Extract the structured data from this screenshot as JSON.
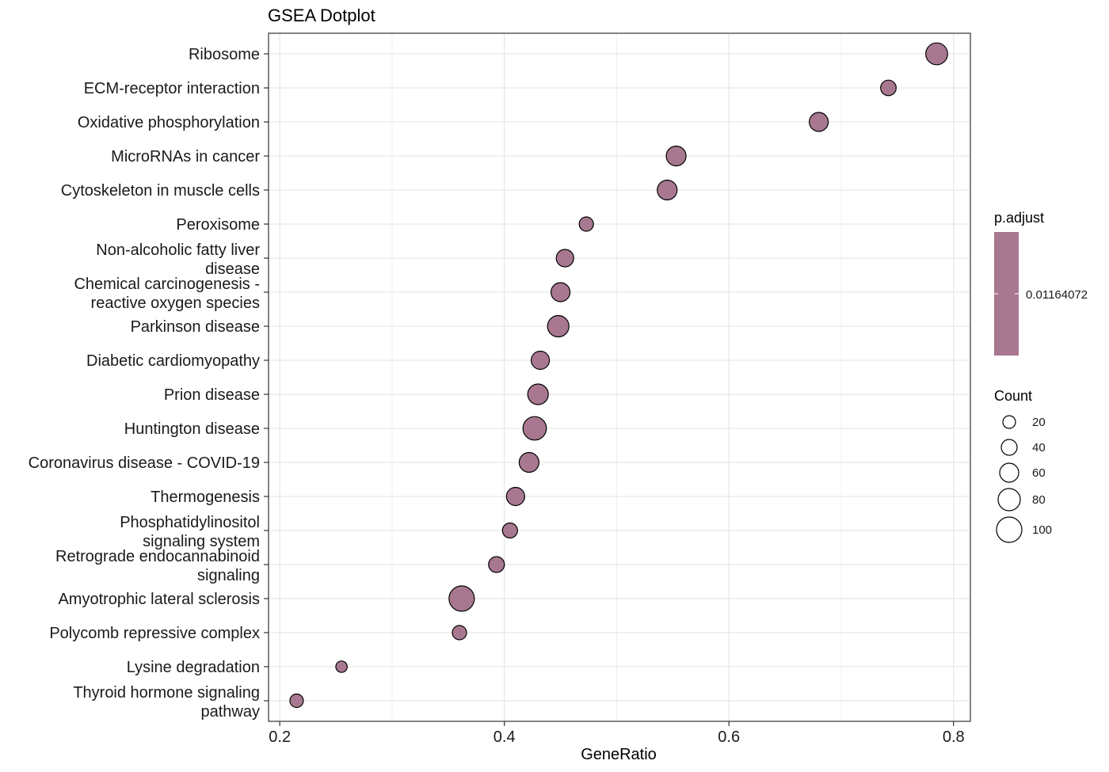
{
  "chart_data": {
    "type": "scatter",
    "title": "GSEA Dotplot",
    "xlabel": "GeneRatio",
    "ylabel": "",
    "xlim": [
      0.19,
      0.815
    ],
    "xticks": [
      "0.2",
      "0.4",
      "0.6",
      "0.8"
    ],
    "xtick_values": [
      0.2,
      0.4,
      0.6,
      0.8
    ],
    "grid": true,
    "legend_position": "right",
    "point_color": "#a87890",
    "categories": [
      "Ribosome",
      "ECM-receptor interaction",
      "Oxidative phosphorylation",
      "MicroRNAs in cancer",
      "Cytoskeleton in muscle cells",
      "Peroxisome",
      "Non-alcoholic fatty liver disease",
      "Chemical carcinogenesis - reactive oxygen species",
      "Parkinson disease",
      "Diabetic cardiomyopathy",
      "Prion disease",
      "Huntington disease",
      "Coronavirus disease - COVID-19",
      "Thermogenesis",
      "Phosphatidylinositol signaling system",
      "Retrograde endocannabinoid signaling",
      "Amyotrophic lateral sclerosis",
      "Polycomb repressive complex",
      "Lysine degradation",
      "Thyroid hormone signaling pathway"
    ],
    "category_lines": [
      [
        "Ribosome"
      ],
      [
        "ECM-receptor interaction"
      ],
      [
        "Oxidative phosphorylation"
      ],
      [
        "MicroRNAs in cancer"
      ],
      [
        "Cytoskeleton in muscle cells"
      ],
      [
        "Peroxisome"
      ],
      [
        "Non-alcoholic fatty liver",
        "disease"
      ],
      [
        "Chemical carcinogenesis -",
        "reactive oxygen species"
      ],
      [
        "Parkinson disease"
      ],
      [
        "Diabetic cardiomyopathy"
      ],
      [
        "Prion disease"
      ],
      [
        "Huntington disease"
      ],
      [
        "Coronavirus disease - COVID-19"
      ],
      [
        "Thermogenesis"
      ],
      [
        "Phosphatidylinositol",
        "signaling system"
      ],
      [
        "Retrograde endocannabinoid",
        "signaling"
      ],
      [
        "Amyotrophic lateral sclerosis"
      ],
      [
        "Polycomb repressive complex"
      ],
      [
        "Lysine degradation"
      ],
      [
        "Thyroid hormone signaling",
        "pathway"
      ]
    ],
    "x": [
      0.785,
      0.742,
      0.68,
      0.553,
      0.545,
      0.473,
      0.454,
      0.45,
      0.448,
      0.432,
      0.43,
      0.427,
      0.422,
      0.41,
      0.405,
      0.393,
      0.362,
      0.36,
      0.255,
      0.215
    ],
    "count": [
      78,
      38,
      60,
      65,
      65,
      30,
      50,
      60,
      75,
      55,
      70,
      88,
      65,
      55,
      35,
      40,
      100,
      30,
      12,
      25
    ],
    "p_adjust": [
      0.01164072,
      0.01164072,
      0.01164072,
      0.01164072,
      0.01164072,
      0.01164072,
      0.01164072,
      0.01164072,
      0.01164072,
      0.01164072,
      0.01164072,
      0.01164072,
      0.01164072,
      0.01164072,
      0.01164072,
      0.01164072,
      0.01164072,
      0.01164072,
      0.01164072,
      0.01164072
    ],
    "color_legend": {
      "title": "p.adjust",
      "label": "0.01164072",
      "color": "#a87890"
    },
    "size_legend": {
      "title": "Count",
      "values": [
        20,
        40,
        60,
        80,
        100
      ],
      "labels": [
        "20",
        "40",
        "60",
        "80",
        "100"
      ]
    }
  }
}
